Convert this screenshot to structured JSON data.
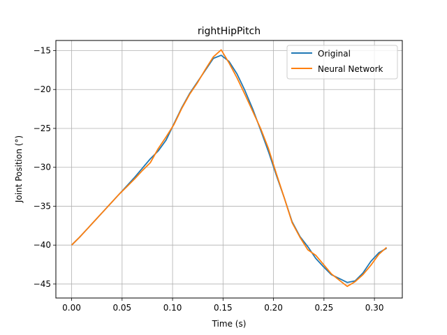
{
  "chart_data": {
    "type": "line",
    "title": "rightHipPitch",
    "xlabel": "Time (s)",
    "ylabel": "Joint Position (°)",
    "xlim": [
      -0.0156,
      0.3276
    ],
    "ylim": [
      -46.8,
      -13.7
    ],
    "xticks": [
      0.0,
      0.05,
      0.1,
      0.15,
      0.2,
      0.25,
      0.3
    ],
    "xtick_labels": [
      "0.00",
      "0.05",
      "0.10",
      "0.15",
      "0.20",
      "0.25",
      "0.30"
    ],
    "yticks": [
      -45,
      -40,
      -35,
      -30,
      -25,
      -20,
      -15
    ],
    "ytick_labels": [
      "−45",
      "−40",
      "−35",
      "−30",
      "−25",
      "−20",
      "−15"
    ],
    "grid": true,
    "legend_position": "top-right",
    "series": [
      {
        "name": "Original",
        "color": "#1f77b4",
        "x": [
          0.0,
          0.0078,
          0.0156,
          0.0234,
          0.0312,
          0.039,
          0.0468,
          0.0546,
          0.0624,
          0.0702,
          0.078,
          0.0858,
          0.0936,
          0.1014,
          0.1092,
          0.117,
          0.1248,
          0.1326,
          0.1404,
          0.1482,
          0.156,
          0.1638,
          0.1716,
          0.1794,
          0.1872,
          0.195,
          0.2028,
          0.2106,
          0.2184,
          0.2262,
          0.234,
          0.2418,
          0.2496,
          0.2574,
          0.2652,
          0.273,
          0.2808,
          0.2886,
          0.2964,
          0.3042,
          0.312
        ],
        "y": [
          -40.0,
          -39.0,
          -37.9,
          -36.8,
          -35.7,
          -34.6,
          -33.5,
          -32.4,
          -31.3,
          -30.1,
          -28.9,
          -27.9,
          -26.5,
          -24.4,
          -22.3,
          -20.5,
          -19.0,
          -17.5,
          -16.0,
          -15.6,
          -16.4,
          -18.0,
          -20.1,
          -22.5,
          -25.2,
          -28.0,
          -31.0,
          -33.9,
          -37.0,
          -38.9,
          -40.2,
          -41.7,
          -42.8,
          -43.8,
          -44.3,
          -44.8,
          -44.6,
          -43.6,
          -42.1,
          -41.0,
          -40.4
        ]
      },
      {
        "name": "Neural Network",
        "color": "#ff7f0e",
        "x": [
          0.0,
          0.0078,
          0.0156,
          0.0234,
          0.0312,
          0.039,
          0.0468,
          0.0546,
          0.0624,
          0.0702,
          0.078,
          0.0858,
          0.0936,
          0.1014,
          0.1092,
          0.117,
          0.1248,
          0.1326,
          0.1404,
          0.1482,
          0.156,
          0.1638,
          0.1716,
          0.1794,
          0.1872,
          0.195,
          0.2028,
          0.2106,
          0.2184,
          0.2262,
          0.234,
          0.2418,
          0.2496,
          0.2574,
          0.2652,
          0.273,
          0.2808,
          0.2886,
          0.2964,
          0.3042,
          0.312
        ],
        "y": [
          -40.0,
          -39.0,
          -37.9,
          -36.8,
          -35.7,
          -34.6,
          -33.5,
          -32.5,
          -31.5,
          -30.4,
          -29.4,
          -27.6,
          -26.1,
          -24.5,
          -22.4,
          -20.6,
          -19.1,
          -17.4,
          -15.8,
          -14.9,
          -16.6,
          -18.5,
          -20.6,
          -22.8,
          -25.0,
          -27.6,
          -30.8,
          -33.9,
          -37.1,
          -39.0,
          -40.6,
          -41.3,
          -42.5,
          -43.7,
          -44.5,
          -45.3,
          -44.7,
          -43.8,
          -42.6,
          -41.2,
          -40.3
        ]
      }
    ]
  }
}
